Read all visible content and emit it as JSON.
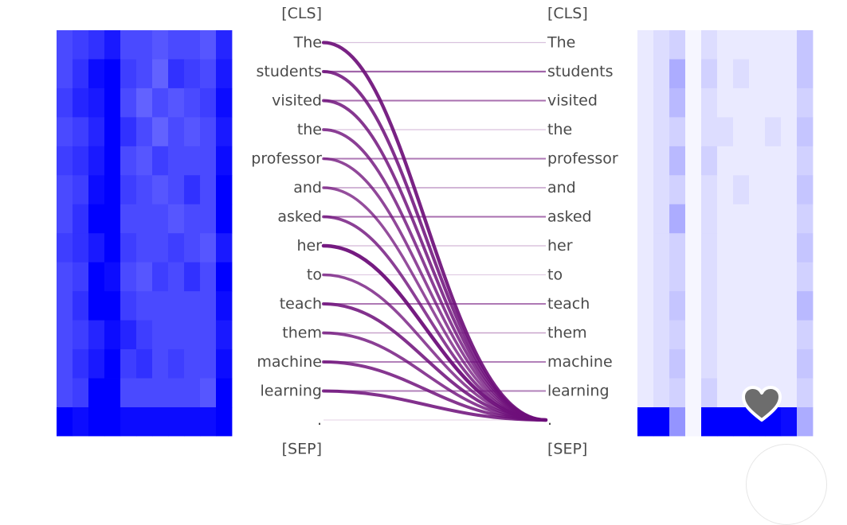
{
  "left_tokens": [
    "[CLS]",
    "The",
    "students",
    "visited",
    "the",
    "professor",
    "and",
    "asked",
    "her",
    "to",
    "teach",
    "them",
    "machine",
    "learning",
    ".",
    "[SEP]"
  ],
  "right_tokens": [
    "[CLS]",
    "The",
    "students",
    "visited",
    "the",
    "professor",
    "and",
    "asked",
    "her",
    "to",
    "teach",
    "them",
    "machine",
    "learning",
    ".",
    "[SEP]"
  ],
  "colors": {
    "attention": "#6e0f7a",
    "heatmap_base": "#0000ff"
  },
  "attention_lines": [
    {
      "source": "The",
      "horizontal": 0.15,
      "to_period": 0.95
    },
    {
      "source": "students",
      "horizontal": 0.65,
      "to_period": 0.85
    },
    {
      "source": "visited",
      "horizontal": 0.6,
      "to_period": 0.8
    },
    {
      "source": "the",
      "horizontal": 0.15,
      "to_period": 0.75
    },
    {
      "source": "professor",
      "horizontal": 0.55,
      "to_period": 0.7
    },
    {
      "source": "and",
      "horizontal": 0.35,
      "to_period": 0.65
    },
    {
      "source": "asked",
      "horizontal": 0.6,
      "to_period": 0.75
    },
    {
      "source": "her",
      "horizontal": 0.2,
      "to_period": 1.0
    },
    {
      "source": "to",
      "horizontal": 0.1,
      "to_period": 0.7
    },
    {
      "source": "teach",
      "horizontal": 0.55,
      "to_period": 0.85
    },
    {
      "source": "them",
      "horizontal": 0.3,
      "to_period": 0.75
    },
    {
      "source": "machine",
      "horizontal": 0.5,
      "to_period": 0.8
    },
    {
      "source": "learning",
      "horizontal": 0.5,
      "to_period": 0.85
    },
    {
      "source": ".",
      "horizontal": 0.05,
      "to_period": 0.05
    }
  ],
  "left_heatmap": [
    [
      0.7,
      0.75,
      0.8,
      0.9,
      0.7,
      0.7,
      0.65,
      0.7,
      0.7,
      0.65,
      0.85
    ],
    [
      0.7,
      0.8,
      0.95,
      1.0,
      0.75,
      0.7,
      0.6,
      0.8,
      0.75,
      0.7,
      0.9
    ],
    [
      0.75,
      0.85,
      0.9,
      1.0,
      0.7,
      0.6,
      0.7,
      0.65,
      0.7,
      0.75,
      0.95
    ],
    [
      0.7,
      0.75,
      0.85,
      1.0,
      0.8,
      0.7,
      0.6,
      0.7,
      0.65,
      0.7,
      0.9
    ],
    [
      0.75,
      0.8,
      0.9,
      1.0,
      0.7,
      0.65,
      0.75,
      0.7,
      0.7,
      0.7,
      0.95
    ],
    [
      0.7,
      0.75,
      0.95,
      1.0,
      0.75,
      0.7,
      0.65,
      0.7,
      0.8,
      0.7,
      1.0
    ],
    [
      0.7,
      0.8,
      1.0,
      1.0,
      0.7,
      0.7,
      0.7,
      0.65,
      0.7,
      0.7,
      1.0
    ],
    [
      0.75,
      0.8,
      0.9,
      1.0,
      0.75,
      0.7,
      0.7,
      0.75,
      0.7,
      0.65,
      0.9
    ],
    [
      0.7,
      0.75,
      1.0,
      0.95,
      0.7,
      0.65,
      0.75,
      0.7,
      0.8,
      0.7,
      1.0
    ],
    [
      0.7,
      0.8,
      1.0,
      1.0,
      0.75,
      0.7,
      0.7,
      0.7,
      0.7,
      0.7,
      0.95
    ],
    [
      0.7,
      0.75,
      0.85,
      0.95,
      0.85,
      0.75,
      0.7,
      0.7,
      0.7,
      0.7,
      0.9
    ],
    [
      0.7,
      0.8,
      0.9,
      1.0,
      0.75,
      0.8,
      0.7,
      0.75,
      0.7,
      0.7,
      0.95
    ],
    [
      0.7,
      0.75,
      1.0,
      1.0,
      0.7,
      0.7,
      0.7,
      0.7,
      0.7,
      0.65,
      1.0
    ],
    [
      1.0,
      0.95,
      1.0,
      1.0,
      0.95,
      0.95,
      0.95,
      0.95,
      0.95,
      0.95,
      1.0
    ]
  ],
  "right_heatmap": [
    [
      0.05,
      0.1,
      0.15,
      0.0,
      0.1,
      0.05,
      0.05,
      0.05,
      0.05,
      0.05,
      0.2
    ],
    [
      0.05,
      0.1,
      0.3,
      0.0,
      0.15,
      0.05,
      0.1,
      0.05,
      0.05,
      0.05,
      0.2
    ],
    [
      0.05,
      0.1,
      0.25,
      0.0,
      0.1,
      0.05,
      0.05,
      0.05,
      0.05,
      0.05,
      0.15
    ],
    [
      0.05,
      0.1,
      0.15,
      0.0,
      0.1,
      0.1,
      0.05,
      0.05,
      0.1,
      0.05,
      0.2
    ],
    [
      0.05,
      0.1,
      0.25,
      0.0,
      0.15,
      0.05,
      0.05,
      0.05,
      0.05,
      0.05,
      0.15
    ],
    [
      0.05,
      0.1,
      0.15,
      0.0,
      0.1,
      0.05,
      0.1,
      0.05,
      0.05,
      0.05,
      0.2
    ],
    [
      0.05,
      0.1,
      0.3,
      0.0,
      0.1,
      0.05,
      0.05,
      0.05,
      0.05,
      0.05,
      0.15
    ],
    [
      0.05,
      0.1,
      0.15,
      0.0,
      0.1,
      0.05,
      0.05,
      0.05,
      0.05,
      0.05,
      0.2
    ],
    [
      0.05,
      0.1,
      0.15,
      0.0,
      0.1,
      0.05,
      0.05,
      0.05,
      0.05,
      0.05,
      0.15
    ],
    [
      0.05,
      0.1,
      0.2,
      0.0,
      0.1,
      0.05,
      0.05,
      0.05,
      0.05,
      0.05,
      0.25
    ],
    [
      0.05,
      0.1,
      0.15,
      0.0,
      0.1,
      0.05,
      0.05,
      0.05,
      0.05,
      0.05,
      0.15
    ],
    [
      0.05,
      0.1,
      0.2,
      0.0,
      0.1,
      0.05,
      0.05,
      0.05,
      0.05,
      0.05,
      0.2
    ],
    [
      0.05,
      0.1,
      0.15,
      0.0,
      0.15,
      0.05,
      0.05,
      0.05,
      0.05,
      0.05,
      0.15
    ],
    [
      1.0,
      1.0,
      0.4,
      0.0,
      1.0,
      1.0,
      1.0,
      1.0,
      1.0,
      0.95,
      0.3
    ]
  ]
}
